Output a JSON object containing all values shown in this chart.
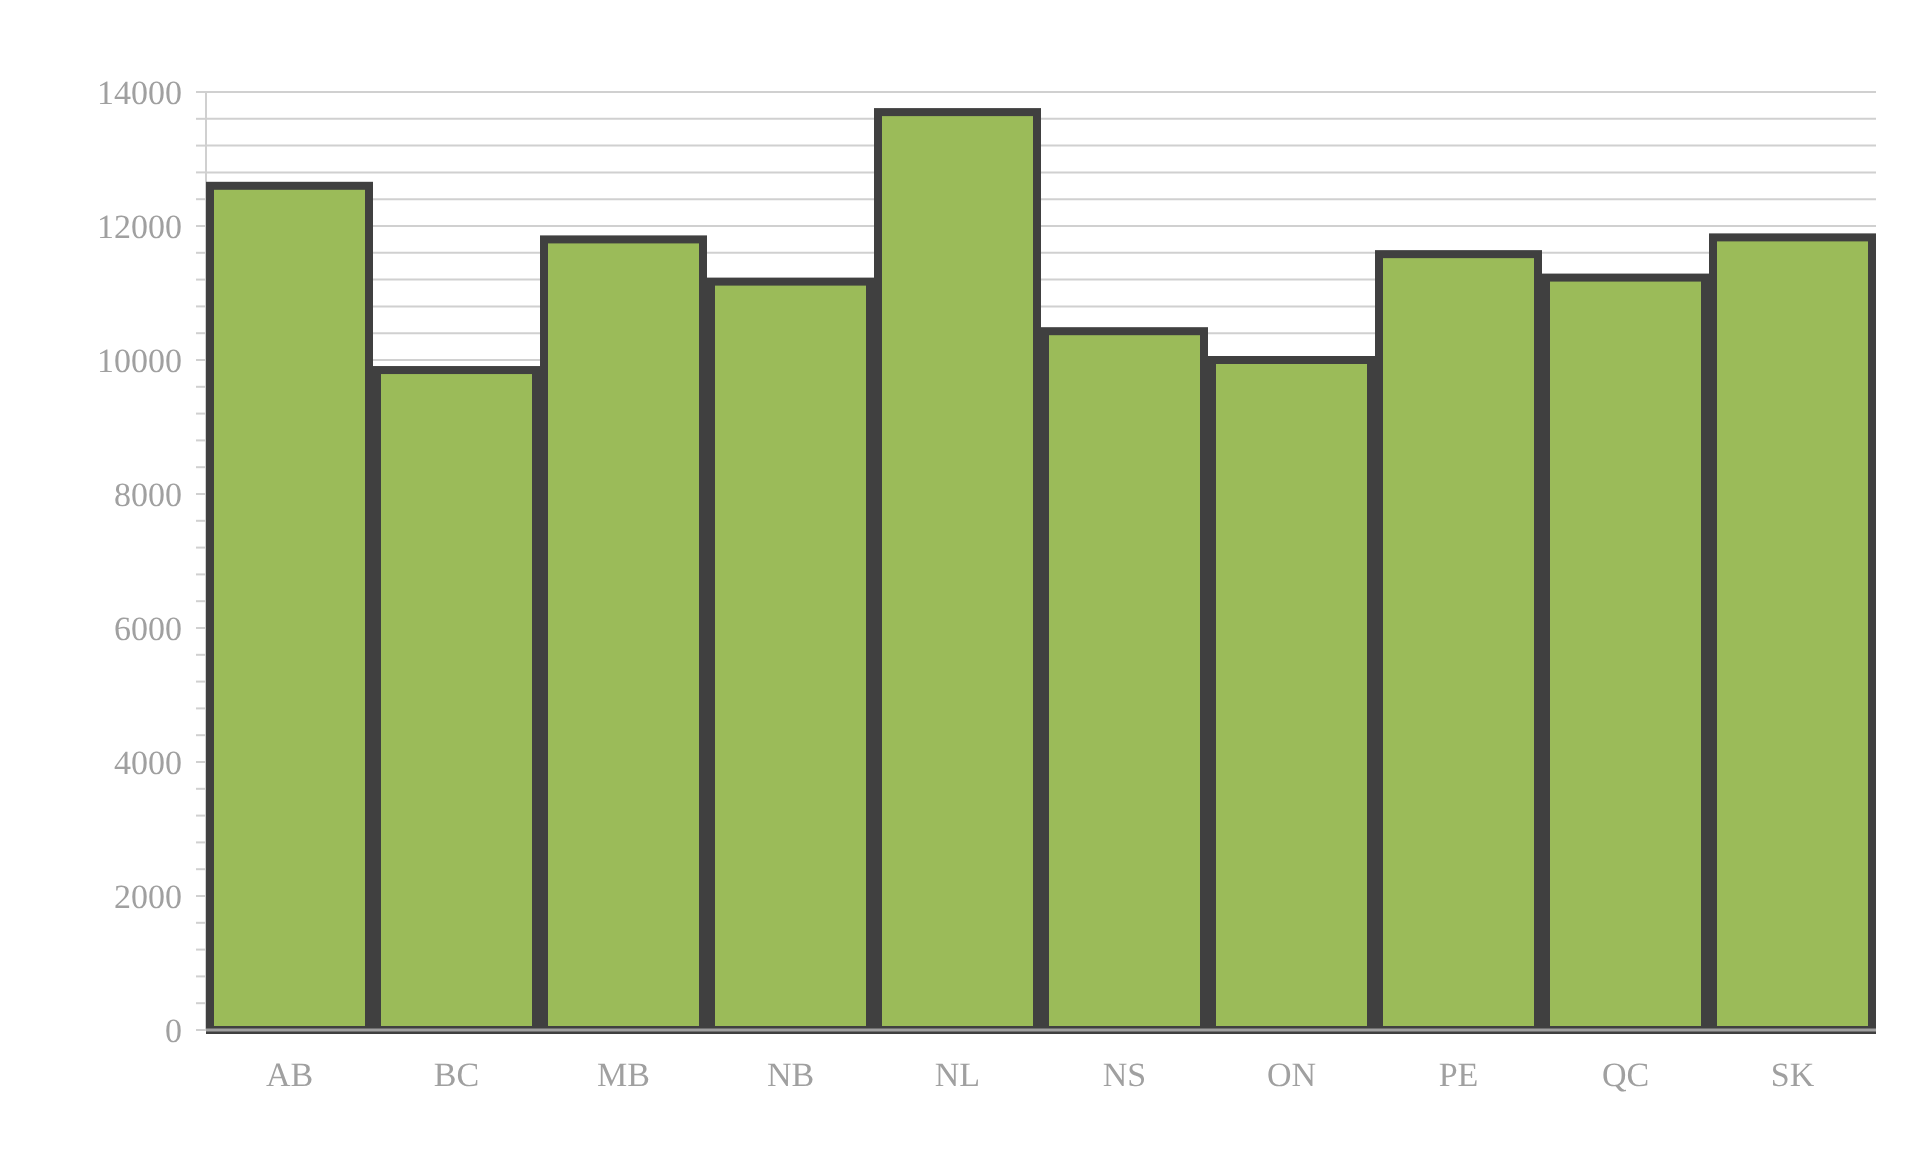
{
  "chart_data": {
    "type": "bar",
    "categories": [
      "AB",
      "BC",
      "MB",
      "NB",
      "NL",
      "NS",
      "ON",
      "PE",
      "QC",
      "SK"
    ],
    "values": [
      12600,
      9850,
      11800,
      11170,
      13700,
      10430,
      10000,
      11580,
      11230,
      11830
    ],
    "color": "#9bbb59",
    "ylim": [
      0,
      14000
    ],
    "yticks": [
      0,
      {
        "value": 400,
        "label": null
      },
      {
        "value": 800,
        "label": null
      },
      {
        "value": 1200,
        "label": null
      },
      {
        "value": 1600,
        "label": null
      },
      2000,
      {
        "value": 2400,
        "label": null
      },
      {
        "value": 2800,
        "label": null
      },
      {
        "value": 3200,
        "label": null
      },
      {
        "value": 3600,
        "label": null
      },
      4000,
      {
        "value": 4400,
        "label": null
      },
      {
        "value": 4800,
        "label": null
      },
      {
        "value": 5200,
        "label": null
      },
      {
        "value": 5600,
        "label": null
      },
      6000,
      {
        "value": 6400,
        "label": null
      },
      {
        "value": 6800,
        "label": null
      },
      {
        "value": 7200,
        "label": null
      },
      {
        "value": 7600,
        "label": null
      },
      8000,
      {
        "value": 8400,
        "label": null
      },
      {
        "value": 8800,
        "label": null
      },
      {
        "value": 9200,
        "label": null
      },
      {
        "value": 9600,
        "label": null
      },
      10000,
      {
        "value": 10400,
        "label": null
      },
      {
        "value": 10800,
        "label": null
      },
      {
        "value": 11200,
        "label": null
      },
      {
        "value": 11600,
        "label": null
      },
      12000,
      {
        "value": 12400,
        "label": null
      },
      {
        "value": 12800,
        "label": null
      },
      {
        "value": 13200,
        "label": null
      },
      {
        "value": 13600,
        "label": null
      },
      14000
    ],
    "grid": true
  }
}
